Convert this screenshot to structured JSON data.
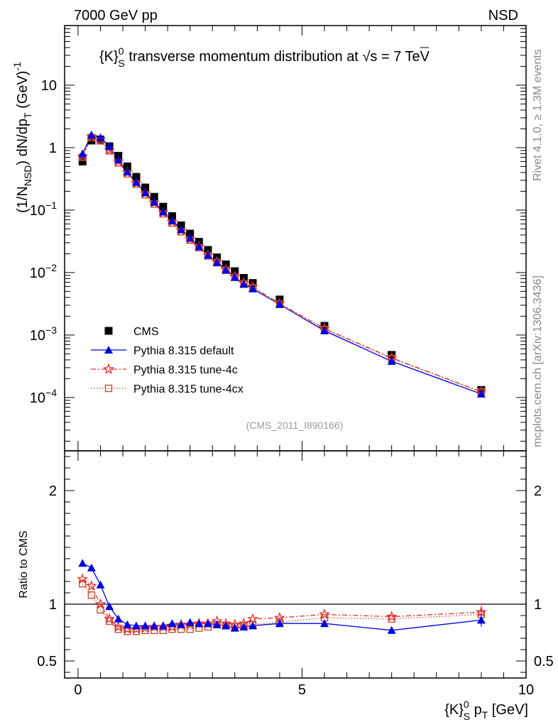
{
  "header": {
    "energy_label": "7000 GeV pp",
    "process_label": "NSD",
    "side_label_rivet": "Rivet 4.1.0, ≥ 1.3M events",
    "side_label_source": "mcplots.cern.ch [arXiv:1306.3436]"
  },
  "colors": {
    "cms": "#000000",
    "default": "#0000dd",
    "tune4c": "#e03030",
    "tune4cx": "#c05030"
  },
  "chart_data": [
    {
      "type": "scatter",
      "panel": "main",
      "title": "{K}S0 transverse momentum distribution at √s = 7 TeV",
      "title_parts": {
        "prefix": "{K}",
        "sub": "S",
        "sup": "0",
        "middle": " transverse momentum distribution at ",
        "sqrt": "s",
        "suffix": " = 7 TeV"
      },
      "ylabel": "(1/NNSD) dN/dpT (GeV)-1",
      "ylabel_parts": {
        "a": "(1/N",
        "a_sub": "NSD",
        "b": ") dN/dp",
        "b_sub": "T",
        "c": " (GeV)",
        "c_sup": "-1"
      },
      "analysis_tag": "(CMS_2011_I890166)",
      "yscale": "log",
      "xlim": [
        -0.3,
        10.0
      ],
      "ylim": [
        1.4e-05,
        90
      ],
      "yticks": [
        {
          "value": 10,
          "base": "10",
          "exp": ""
        },
        {
          "value": 1,
          "base": "1",
          "exp": ""
        },
        {
          "value": 0.1,
          "base": "10",
          "exp": "−1"
        },
        {
          "value": 0.01,
          "base": "10",
          "exp": "−2"
        },
        {
          "value": 0.001,
          "base": "10",
          "exp": "−3"
        },
        {
          "value": 0.0001,
          "base": "10",
          "exp": "−4"
        }
      ],
      "x": [
        0.1,
        0.3,
        0.5,
        0.7,
        0.9,
        1.1,
        1.3,
        1.5,
        1.7,
        1.9,
        2.1,
        2.3,
        2.5,
        2.7,
        2.9,
        3.1,
        3.3,
        3.5,
        3.7,
        3.9,
        4.5,
        5.5,
        7.0,
        9.0
      ],
      "series": [
        {
          "name": "CMS",
          "marker": "square",
          "values": [
            0.6,
            1.3,
            1.35,
            1.05,
            0.74,
            0.5,
            0.34,
            0.23,
            0.163,
            0.113,
            0.08,
            0.057,
            0.042,
            0.031,
            0.023,
            0.0175,
            0.0135,
            0.0105,
            0.0082,
            0.0068,
            0.0037,
            0.0014,
            0.00048,
            0.000132
          ]
        },
        {
          "name": "Pythia 8.315 default",
          "marker": "triangle",
          "values": [
            0.8,
            1.6,
            1.45,
            1.05,
            0.64,
            0.41,
            0.28,
            0.19,
            0.135,
            0.094,
            0.068,
            0.049,
            0.036,
            0.026,
            0.019,
            0.0144,
            0.011,
            0.0084,
            0.0065,
            0.0055,
            0.0031,
            0.00117,
            0.00038,
            0.000114
          ]
        },
        {
          "name": "Pythia 8.315 tune-4c",
          "marker": "star",
          "values": [
            0.72,
            1.5,
            1.35,
            0.92,
            0.6,
            0.4,
            0.27,
            0.185,
            0.13,
            0.091,
            0.065,
            0.047,
            0.034,
            0.026,
            0.019,
            0.0149,
            0.0112,
            0.0086,
            0.0068,
            0.0059,
            0.0032,
            0.00127,
            0.00043,
            0.000124
          ]
        },
        {
          "name": "Pythia 8.315 tune-4cx",
          "marker": "open-square",
          "values": [
            0.7,
            1.45,
            1.28,
            0.89,
            0.57,
            0.38,
            0.26,
            0.176,
            0.125,
            0.087,
            0.062,
            0.045,
            0.033,
            0.025,
            0.0185,
            0.0144,
            0.0109,
            0.0084,
            0.0066,
            0.0057,
            0.0031,
            0.00123,
            0.00042,
            0.000122
          ]
        }
      ],
      "legend": {
        "position": "lower-left",
        "entries": [
          "CMS",
          "Pythia 8.315 default",
          "Pythia 8.315 tune-4c",
          "Pythia 8.315 tune-4cx"
        ]
      }
    },
    {
      "type": "line",
      "panel": "ratio",
      "ylabel": "Ratio to CMS",
      "xlabel": "{K}S0 pT [GeV]",
      "xlabel_parts": {
        "prefix": "{K}",
        "sub": "S",
        "sup": "0",
        "mid": " p",
        "mid_sub": "T",
        "suffix": " [GeV]"
      },
      "xlim": [
        -0.3,
        10.0
      ],
      "ylim": [
        0.35,
        2.35
      ],
      "reference_line": 1,
      "xticks": [
        0,
        5,
        10
      ],
      "yticks": [
        0.5,
        1,
        2
      ],
      "ytick_labels": [
        "0.5",
        "1",
        "2"
      ],
      "x": [
        0.1,
        0.3,
        0.5,
        0.7,
        0.9,
        1.1,
        1.3,
        1.5,
        1.7,
        1.9,
        2.1,
        2.3,
        2.5,
        2.7,
        2.9,
        3.1,
        3.3,
        3.5,
        3.7,
        3.9,
        4.5,
        5.5,
        7.0,
        9.0
      ],
      "series": [
        {
          "name": "Pythia 8.315 default",
          "marker": "triangle",
          "values": [
            1.36,
            1.32,
            1.17,
            0.98,
            0.87,
            0.82,
            0.81,
            0.81,
            0.81,
            0.81,
            0.83,
            0.82,
            0.84,
            0.83,
            0.83,
            0.82,
            0.81,
            0.79,
            0.8,
            0.81,
            0.83,
            0.83,
            0.77,
            0.86
          ]
        },
        {
          "name": "Pythia 8.315 tune-4c",
          "marker": "star",
          "values": [
            1.22,
            1.16,
            1.0,
            0.87,
            0.8,
            0.78,
            0.78,
            0.79,
            0.8,
            0.8,
            0.8,
            0.82,
            0.82,
            0.83,
            0.83,
            0.85,
            0.83,
            0.82,
            0.83,
            0.87,
            0.88,
            0.91,
            0.89,
            0.93
          ]
        },
        {
          "name": "Pythia 8.315 tune-4cx",
          "marker": "open-square",
          "values": [
            1.18,
            1.08,
            0.95,
            0.85,
            0.78,
            0.76,
            0.76,
            0.77,
            0.77,
            0.77,
            0.78,
            0.78,
            0.78,
            0.79,
            0.8,
            0.82,
            0.81,
            0.8,
            0.81,
            0.82,
            0.84,
            0.88,
            0.87,
            0.91
          ]
        }
      ]
    }
  ]
}
